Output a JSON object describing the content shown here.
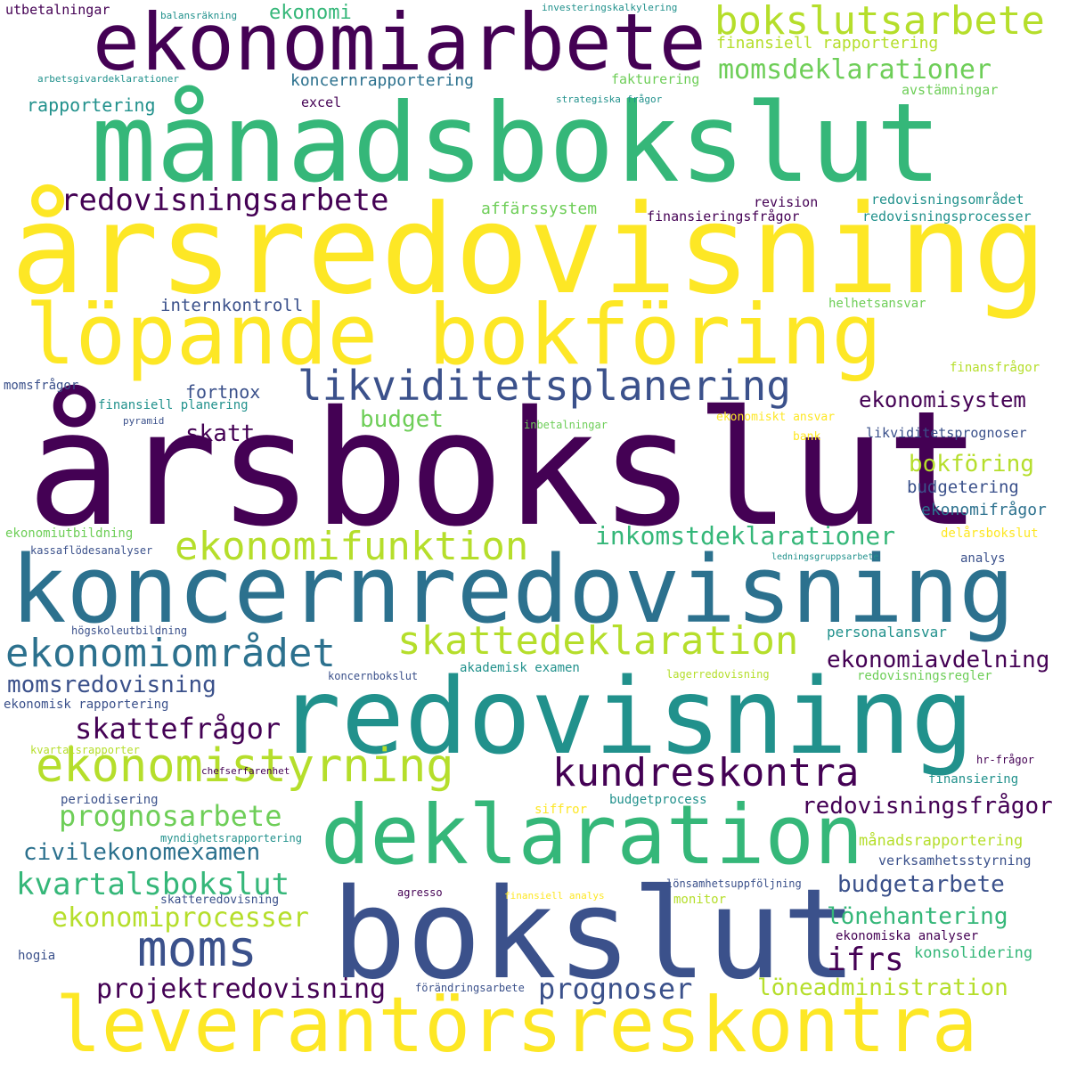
{
  "palette": {
    "viridis_0": "#440154",
    "viridis_1": "#3b518b",
    "viridis_2": "#2c718e",
    "viridis_3": "#21918c",
    "viridis_4": "#35b779",
    "viridis_5": "#6ece58",
    "viridis_6": "#b5de2b",
    "viridis_7": "#fde725"
  },
  "words": [
    {
      "text": "årsbokslut",
      "color": "viridis_0",
      "weight": 1.0
    },
    {
      "text": "årsredovisning",
      "color": "viridis_7",
      "weight": 0.95
    },
    {
      "text": "koncernredovisning",
      "color": "viridis_2",
      "weight": 0.8
    },
    {
      "text": "månadsbokslut",
      "color": "viridis_4",
      "weight": 0.85
    },
    {
      "text": "bokslut",
      "color": "viridis_1",
      "weight": 0.9
    },
    {
      "text": "redovisning",
      "color": "viridis_3",
      "weight": 0.8
    },
    {
      "text": "löpande bokföring",
      "color": "viridis_7",
      "weight": 0.7
    },
    {
      "text": "leverantörsreskontra",
      "color": "viridis_7",
      "weight": 0.65
    },
    {
      "text": "ekonomiarbete",
      "color": "viridis_0",
      "weight": 0.65
    },
    {
      "text": "deklaration",
      "color": "viridis_4",
      "weight": 0.7
    },
    {
      "text": "ekonomistyrning",
      "color": "viridis_6",
      "weight": 0.45
    },
    {
      "text": "bokslutsarbete",
      "color": "viridis_6",
      "weight": 0.4
    },
    {
      "text": "likviditetsplanering",
      "color": "viridis_1",
      "weight": 0.4
    },
    {
      "text": "ekonomiområdet",
      "color": "viridis_2",
      "weight": 0.38
    },
    {
      "text": "skattedeklaration",
      "color": "viridis_6",
      "weight": 0.38
    },
    {
      "text": "ekonomifunktion",
      "color": "viridis_6",
      "weight": 0.35
    },
    {
      "text": "kundreskontra",
      "color": "viridis_0",
      "weight": 0.35
    },
    {
      "text": "moms",
      "color": "viridis_1",
      "weight": 0.4
    },
    {
      "text": "redovisningsarbete",
      "color": "viridis_0",
      "weight": 0.3
    },
    {
      "text": "momsdeklarationer",
      "color": "viridis_5",
      "weight": 0.28
    },
    {
      "text": "prognosarbete",
      "color": "viridis_5",
      "weight": 0.28
    },
    {
      "text": "kvartalsbokslut",
      "color": "viridis_4",
      "weight": 0.28
    },
    {
      "text": "ekonomiprocesser",
      "color": "viridis_6",
      "weight": 0.27
    },
    {
      "text": "projektredovisning",
      "color": "viridis_0",
      "weight": 0.27
    },
    {
      "text": "prognoser",
      "color": "viridis_1",
      "weight": 0.28
    },
    {
      "text": "skattefrågor",
      "color": "viridis_0",
      "weight": 0.27
    },
    {
      "text": "inkomstdeklarationer",
      "color": "viridis_4",
      "weight": 0.25
    },
    {
      "text": "ifrs",
      "color": "viridis_0",
      "weight": 0.27
    },
    {
      "text": "momsredovisning",
      "color": "viridis_1",
      "weight": 0.23
    },
    {
      "text": "ekonomiavdelning",
      "color": "viridis_0",
      "weight": 0.23
    },
    {
      "text": "redovisningsfrågor",
      "color": "viridis_0",
      "weight": 0.22
    },
    {
      "text": "civilekonomexamen",
      "color": "viridis_2",
      "weight": 0.22
    },
    {
      "text": "budgetarbete",
      "color": "viridis_1",
      "weight": 0.22
    },
    {
      "text": "lönehantering",
      "color": "viridis_4",
      "weight": 0.22
    },
    {
      "text": "löneadministration",
      "color": "viridis_6",
      "weight": 0.22
    },
    {
      "text": "ekonomisystem",
      "color": "viridis_0",
      "weight": 0.2
    },
    {
      "text": "bokföring",
      "color": "viridis_6",
      "weight": 0.22
    },
    {
      "text": "budget",
      "color": "viridis_5",
      "weight": 0.2
    },
    {
      "text": "skatt",
      "color": "viridis_0",
      "weight": 0.22
    },
    {
      "text": "ekonomi",
      "color": "viridis_4",
      "weight": 0.2
    },
    {
      "text": "internkontroll",
      "color": "viridis_1",
      "weight": 0.17
    },
    {
      "text": "fortnox",
      "color": "viridis_1",
      "weight": 0.17
    },
    {
      "text": "budgetering",
      "color": "viridis_1",
      "weight": 0.17
    },
    {
      "text": "ekonomifrågor",
      "color": "viridis_2",
      "weight": 0.16
    },
    {
      "text": "koncernrapportering",
      "color": "viridis_2",
      "weight": 0.16
    },
    {
      "text": "rapportering",
      "color": "viridis_3",
      "weight": 0.17
    },
    {
      "text": "affärssystem",
      "color": "viridis_5",
      "weight": 0.16
    },
    {
      "text": "finansiell rapportering",
      "color": "viridis_6",
      "weight": 0.16
    },
    {
      "text": "konsolidering",
      "color": "viridis_4",
      "weight": 0.15
    },
    {
      "text": "personalansvar",
      "color": "viridis_3",
      "weight": 0.14
    },
    {
      "text": "månadsrapportering",
      "color": "viridis_6",
      "weight": 0.14
    },
    {
      "text": "finansieringsfrågor",
      "color": "viridis_0",
      "weight": 0.14
    },
    {
      "text": "redovisningsprocesser",
      "color": "viridis_3",
      "weight": 0.13
    },
    {
      "text": "redovisningsområdet",
      "color": "viridis_3",
      "weight": 0.13
    },
    {
      "text": "revision",
      "color": "viridis_0",
      "weight": 0.13
    },
    {
      "text": "ekonomiska analyser",
      "color": "viridis_0",
      "weight": 0.12
    },
    {
      "text": "verksamhetsstyrning",
      "color": "viridis_1",
      "weight": 0.12
    },
    {
      "text": "likviditetsprognoser",
      "color": "viridis_1",
      "weight": 0.12
    },
    {
      "text": "finansiell planering",
      "color": "viridis_3",
      "weight": 0.12
    },
    {
      "text": "momsfrågor",
      "color": "viridis_1",
      "weight": 0.11
    },
    {
      "text": "helhetsansvar",
      "color": "viridis_5",
      "weight": 0.11
    },
    {
      "text": "finansfrågor",
      "color": "viridis_6",
      "weight": 0.11
    },
    {
      "text": "avstämningar",
      "color": "viridis_5",
      "weight": 0.12
    },
    {
      "text": "fakturering",
      "color": "viridis_5",
      "weight": 0.12
    },
    {
      "text": "excel",
      "color": "viridis_0",
      "weight": 0.12
    },
    {
      "text": "utbetalningar",
      "color": "viridis_0",
      "weight": 0.12
    },
    {
      "text": "ekonomiutbildning",
      "color": "viridis_5",
      "weight": 0.11
    },
    {
      "text": "kassaflödesanalyser",
      "color": "viridis_1",
      "weight": 0.1
    },
    {
      "text": "högskoleutbildning",
      "color": "viridis_1",
      "weight": 0.1
    },
    {
      "text": "ekonomisk rapportering",
      "color": "viridis_1",
      "weight": 0.11
    },
    {
      "text": "akademisk examen",
      "color": "viridis_3",
      "weight": 0.11
    },
    {
      "text": "koncernbokslut",
      "color": "viridis_1",
      "weight": 0.1
    },
    {
      "text": "lagerredovisning",
      "color": "viridis_6",
      "weight": 0.1
    },
    {
      "text": "redovisningsregler",
      "color": "viridis_5",
      "weight": 0.11
    },
    {
      "text": "analys",
      "color": "viridis_1",
      "weight": 0.11
    },
    {
      "text": "delårsbokslut",
      "color": "viridis_7",
      "weight": 0.11
    },
    {
      "text": "ledningsgruppsarbete",
      "color": "viridis_3",
      "weight": 0.08
    },
    {
      "text": "kvartalsrapporter",
      "color": "viridis_6",
      "weight": 0.1
    },
    {
      "text": "periodisering",
      "color": "viridis_1",
      "weight": 0.11
    },
    {
      "text": "chefserfarenhet",
      "color": "viridis_0",
      "weight": 0.09
    },
    {
      "text": "myndighetsrapportering",
      "color": "viridis_3",
      "weight": 0.09
    },
    {
      "text": "skatteredovisning",
      "color": "viridis_1",
      "weight": 0.1
    },
    {
      "text": "hogia",
      "color": "viridis_1",
      "weight": 0.11
    },
    {
      "text": "agresso",
      "color": "viridis_0",
      "weight": 0.1
    },
    {
      "text": "finansiell analys",
      "color": "viridis_7",
      "weight": 0.09
    },
    {
      "text": "lönsamhetsuppföljning",
      "color": "viridis_1",
      "weight": 0.09
    },
    {
      "text": "monitor",
      "color": "viridis_6",
      "weight": 0.11
    },
    {
      "text": "siffror",
      "color": "viridis_7",
      "weight": 0.11
    },
    {
      "text": "budgetprocess",
      "color": "viridis_3",
      "weight": 0.11
    },
    {
      "text": "förändringsarbete",
      "color": "viridis_1",
      "weight": 0.09
    },
    {
      "text": "finansiering",
      "color": "viridis_3",
      "weight": 0.11
    },
    {
      "text": "hr-frågor",
      "color": "viridis_0",
      "weight": 0.09
    },
    {
      "text": "ekonomiskt ansvar",
      "color": "viridis_7",
      "weight": 0.1
    },
    {
      "text": "inbetalningar",
      "color": "viridis_5",
      "weight": 0.09
    },
    {
      "text": "bank",
      "color": "viridis_7",
      "weight": 0.1
    },
    {
      "text": "pyramid",
      "color": "viridis_1",
      "weight": 0.09
    },
    {
      "text": "balansräkning",
      "color": "viridis_3",
      "weight": 0.09
    },
    {
      "text": "investeringskalkylering",
      "color": "viridis_3",
      "weight": 0.09
    },
    {
      "text": "arbetsgivardeklarationer",
      "color": "viridis_3",
      "weight": 0.09
    },
    {
      "text": "strategiska frågor",
      "color": "viridis_3",
      "weight": 0.09
    }
  ]
}
